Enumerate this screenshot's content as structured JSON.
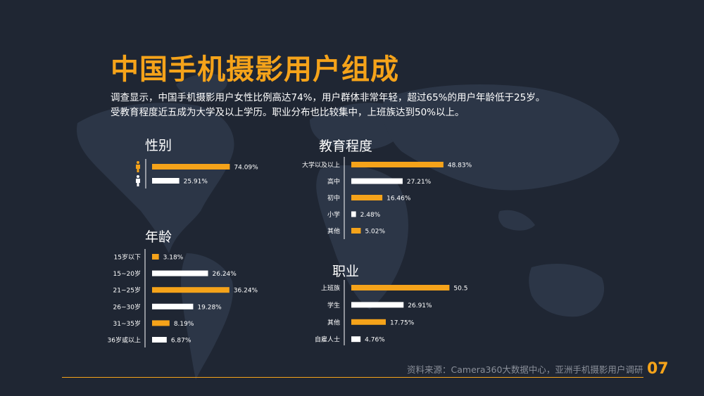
{
  "title": "中国手机摄影用户组成",
  "description": [
    "调查显示，中国手机摄影用户女性比例高达74%，用户群体非常年轻，超过65%的用户年龄低于25岁。",
    "受教育程度近五成为大学及以上学历。职业分布也比较集中，上班族达到50%以上。"
  ],
  "source": "资料来源：Camera360大数据中心，亚洲手机摄影用户调研",
  "page_number": "07",
  "colors": {
    "accent": "#f5a31a",
    "white_bar": "#ffffff",
    "background": "#1f2633",
    "map": "#2c3647"
  },
  "chart_data": [
    {
      "id": "gender",
      "type": "bar",
      "orientation": "horizontal",
      "title": "性别",
      "categories": [
        "female-icon",
        "male-icon"
      ],
      "values": [
        74.09,
        25.91
      ],
      "value_labels": [
        "74.09%",
        "25.91%"
      ],
      "bar_colors": [
        "#f5a31a",
        "#ffffff"
      ]
    },
    {
      "id": "age",
      "type": "bar",
      "orientation": "horizontal",
      "title": "年龄",
      "categories": [
        "15岁以下",
        "15~20岁",
        "21~25岁",
        "26~30岁",
        "31~35岁",
        "36岁或以上"
      ],
      "values": [
        3.18,
        26.24,
        36.24,
        19.28,
        8.19,
        6.87
      ],
      "value_labels": [
        "3.18%",
        "26.24%",
        "36.24%",
        "19.28%",
        "8.19%",
        "6.87%"
      ],
      "bar_colors": [
        "#f5a31a",
        "#ffffff",
        "#f5a31a",
        "#ffffff",
        "#f5a31a",
        "#ffffff"
      ]
    },
    {
      "id": "education",
      "type": "bar",
      "orientation": "horizontal",
      "title": "教育程度",
      "categories": [
        "大学以及以上",
        "高中",
        "初中",
        "小学",
        "其他"
      ],
      "values": [
        48.83,
        27.21,
        16.46,
        2.48,
        5.02
      ],
      "value_labels": [
        "48.83%",
        "27.21%",
        "16.46%",
        "2.48%",
        "5.02%"
      ],
      "bar_colors": [
        "#f5a31a",
        "#ffffff",
        "#f5a31a",
        "#ffffff",
        "#f5a31a"
      ]
    },
    {
      "id": "occupation",
      "type": "bar",
      "orientation": "horizontal",
      "title": "职业",
      "categories": [
        "上班族",
        "学生",
        "其他",
        "自雇人士"
      ],
      "values": [
        50.5,
        26.91,
        17.75,
        4.76
      ],
      "value_labels": [
        "50.5",
        "26.91%",
        "17.75%",
        "4.76%"
      ],
      "bar_colors": [
        "#f5a31a",
        "#ffffff",
        "#f5a31a",
        "#ffffff"
      ]
    }
  ]
}
